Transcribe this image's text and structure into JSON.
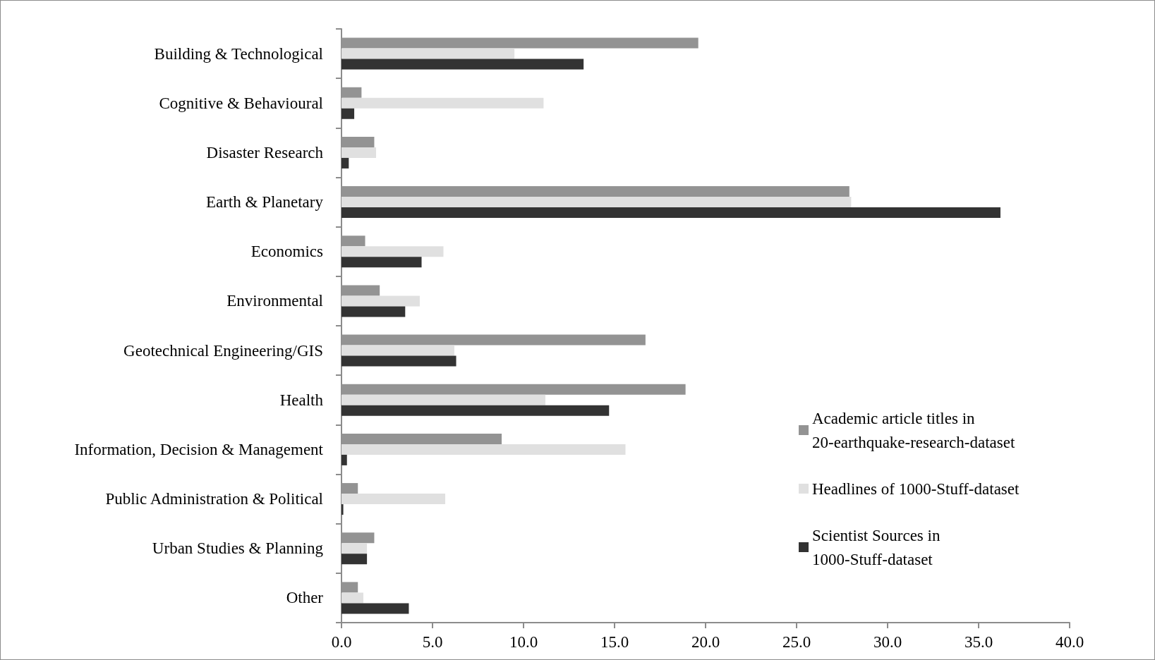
{
  "chart_data": {
    "type": "bar",
    "orientation": "horizontal",
    "categories": [
      "Building & Technological",
      "Cognitive & Behavioural",
      "Disaster Research",
      "Earth & Planetary",
      "Economics",
      "Environmental",
      "Geotechnical Engineering/GIS",
      "Health",
      "Information, Decision & Management",
      "Public Administration & Political",
      "Urban Studies & Planning",
      "Other"
    ],
    "series": [
      {
        "name": "Academic article titles in 20-earthquake-research-dataset",
        "color": "#939393",
        "values": [
          19.6,
          1.1,
          1.8,
          27.9,
          1.3,
          2.1,
          16.7,
          18.9,
          8.8,
          0.9,
          1.8,
          0.9
        ]
      },
      {
        "name": "Headlines of 1000-Stuff-dataset",
        "color": "#e0e0e0",
        "values": [
          9.5,
          11.1,
          1.9,
          28.0,
          5.6,
          4.3,
          6.2,
          11.2,
          15.6,
          5.7,
          1.4,
          1.2
        ]
      },
      {
        "name": "Scientist Sources in 1000-Stuff-dataset",
        "color": "#333333",
        "values": [
          13.3,
          0.7,
          0.4,
          36.2,
          4.4,
          3.5,
          6.3,
          14.7,
          0.3,
          0.1,
          1.4,
          3.7
        ]
      }
    ],
    "xlim": [
      0,
      40
    ],
    "xticks": [
      {
        "value": 0,
        "label": "0.0"
      },
      {
        "value": 5,
        "label": "5.0"
      },
      {
        "value": 10,
        "label": "10.0"
      },
      {
        "value": 15,
        "label": "15.0"
      },
      {
        "value": 20,
        "label": "20.0"
      },
      {
        "value": 25,
        "label": "25.0"
      },
      {
        "value": 30,
        "label": "30.0"
      },
      {
        "value": 35,
        "label": "35.0"
      },
      {
        "value": 40,
        "label": "40.0"
      }
    ],
    "grid": false,
    "legend": "bottom right"
  }
}
